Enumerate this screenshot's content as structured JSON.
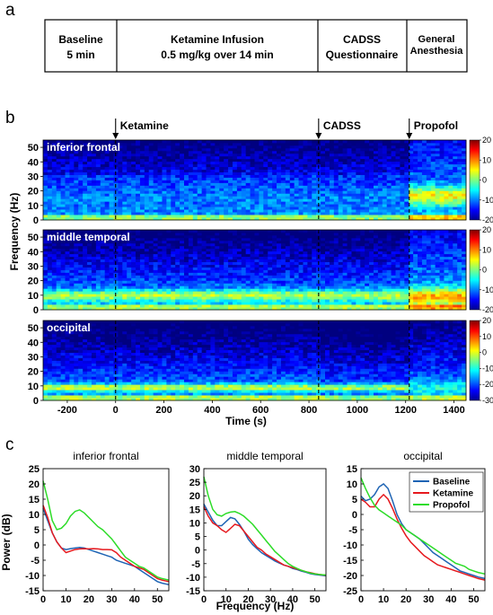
{
  "panel_labels": [
    "a",
    "b",
    "c"
  ],
  "timeline": [
    {
      "lines": [
        "Baseline",
        "5 min"
      ]
    },
    {
      "lines": [
        "Ketamine Infusion",
        "0.5 mg/kg over 14 min"
      ]
    },
    {
      "lines": [
        "CADSS",
        "Questionnaire"
      ]
    },
    {
      "lines": [
        "General",
        "Anesthesia"
      ]
    }
  ],
  "colors": {
    "baseline": "#1f64b4",
    "ketamine": "#e6191e",
    "propofol": "#2ddc28"
  },
  "chart_data": [
    {
      "type": "heatmap",
      "ylabel": "Frequency (Hz)",
      "xlabel": "Time (s)",
      "xlim": [
        -300,
        1450
      ],
      "ylim": [
        0,
        55
      ],
      "xticks": [
        "-200",
        "0",
        "200",
        "400",
        "600",
        "800",
        "1000",
        "1200",
        "1400"
      ],
      "yticks": [
        "0",
        "10",
        "20",
        "30",
        "40",
        "50"
      ],
      "event_labels": [
        "Ketamine",
        "CADSS",
        "Propofol"
      ],
      "events": [
        0,
        840,
        1215
      ],
      "colormap": "jet",
      "panels": [
        {
          "name": "inferior frontal",
          "clim": [
            -20,
            20
          ],
          "cbar_ticks": [
            "20",
            "10",
            "0",
            "-10",
            "-20"
          ]
        },
        {
          "name": "middle temporal",
          "clim": [
            -20,
            20
          ],
          "cbar_ticks": [
            "20",
            "10",
            "0",
            "-10",
            "-20"
          ]
        },
        {
          "name": "occipital",
          "clim": [
            -30,
            20
          ],
          "cbar_ticks": [
            "20",
            "10",
            "0",
            "-10",
            "-20",
            "-30"
          ]
        }
      ]
    },
    {
      "type": "line",
      "xlabel": "Frequency (Hz)",
      "ylabel": "Power (dB)",
      "legend": [
        "Baseline",
        "Ketamine",
        "Propofol"
      ],
      "legend_position": "top-right (occipital panel)",
      "xticks": [
        "0",
        "10",
        "20",
        "30",
        "40",
        "50"
      ],
      "xlim": [
        0,
        55
      ],
      "panels": [
        {
          "title": "inferior frontal",
          "ylim": [
            -15,
            25
          ],
          "yticks": [
            "25",
            "20",
            "15",
            "10",
            "5",
            "0",
            "-5",
            "-10",
            "-15"
          ],
          "x": [
            0,
            2,
            4,
            6,
            8,
            10,
            12,
            14,
            16,
            18,
            20,
            22,
            24,
            26,
            28,
            30,
            32,
            34,
            36,
            38,
            40,
            42,
            44,
            46,
            48,
            50,
            52,
            55
          ],
          "series": [
            {
              "name": "Baseline",
              "values": [
                12,
                8,
                4,
                1,
                -1,
                -1.5,
                -1.2,
                -1,
                -0.8,
                -1,
                -1.5,
                -2,
                -2.5,
                -3,
                -3.5,
                -4,
                -5,
                -5.5,
                -6,
                -6.5,
                -7,
                -8,
                -9,
                -10,
                -11,
                -12,
                -12.5,
                -13
              ]
            },
            {
              "name": "Ketamine",
              "values": [
                13,
                9,
                4,
                1,
                -1,
                -2.5,
                -2,
                -1.5,
                -1.3,
                -1.2,
                -1.3,
                -1.2,
                -1.3,
                -1.5,
                -1.5,
                -1.6,
                -2.5,
                -4,
                -5,
                -6,
                -7,
                -7.5,
                -8,
                -9,
                -10,
                -11,
                -11.5,
                -12
              ]
            },
            {
              "name": "Propofol",
              "values": [
                21,
                15,
                8,
                5,
                5.5,
                7,
                9.5,
                11,
                11.5,
                10.5,
                9,
                7.5,
                6,
                5,
                3.5,
                2,
                0,
                -2,
                -4,
                -5,
                -6,
                -7,
                -7.5,
                -8.5,
                -9.5,
                -10.5,
                -11,
                -11.5
              ]
            }
          ]
        },
        {
          "title": "middle temporal",
          "ylim": [
            -15,
            30
          ],
          "yticks": [
            "30",
            "25",
            "20",
            "15",
            "10",
            "5",
            "0",
            "-5",
            "-10",
            "-15"
          ],
          "x": [
            0,
            2,
            4,
            6,
            8,
            10,
            12,
            14,
            16,
            18,
            20,
            22,
            24,
            26,
            28,
            30,
            32,
            34,
            36,
            38,
            40,
            42,
            44,
            46,
            48,
            50,
            52,
            55
          ],
          "series": [
            {
              "name": "Baseline",
              "values": [
                17,
                14,
                11,
                9,
                9,
                10.5,
                12,
                11.5,
                9.5,
                7,
                4,
                2,
                0.5,
                -1,
                -2,
                -3,
                -4,
                -4.8,
                -5.5,
                -6,
                -6.8,
                -7.2,
                -7.8,
                -8.2,
                -8.7,
                -9,
                -9.2,
                -9.5
              ]
            },
            {
              "name": "Ketamine",
              "values": [
                16,
                12.5,
                10,
                9,
                7.5,
                6.5,
                8,
                9.5,
                9,
                7,
                5,
                3,
                1,
                0,
                -1.5,
                -2.5,
                -3.5,
                -4.5,
                -5.5,
                -6,
                -6.5,
                -7,
                -7.5,
                -8,
                -8.3,
                -8.7,
                -9,
                -9.3
              ]
            },
            {
              "name": "Propofol",
              "values": [
                27,
                20,
                15,
                13,
                12.5,
                13.5,
                14,
                14.2,
                13.5,
                12.5,
                11,
                9.5,
                7.5,
                5.5,
                3.5,
                1.5,
                -0.5,
                -2,
                -3.5,
                -5,
                -6,
                -6.8,
                -7.5,
                -8,
                -8.5,
                -8.8,
                -9,
                -9.2
              ]
            }
          ]
        },
        {
          "title": "occipital",
          "ylim": [
            -25,
            15
          ],
          "yticks": [
            "15",
            "10",
            "5",
            "0",
            "-5",
            "-10",
            "-15",
            "-20",
            "-25"
          ],
          "x": [
            0,
            2,
            4,
            6,
            8,
            10,
            12,
            14,
            16,
            18,
            20,
            22,
            24,
            26,
            28,
            30,
            32,
            34,
            36,
            38,
            40,
            42,
            44,
            46,
            48,
            50,
            52,
            55
          ],
          "series": [
            {
              "name": "Baseline",
              "values": [
                6,
                4.5,
                5,
                6.5,
                9,
                10,
                8.5,
                4.5,
                0,
                -3,
                -5,
                -6,
                -7,
                -8,
                -9.5,
                -11,
                -12.5,
                -13.5,
                -14.5,
                -15.5,
                -16.5,
                -17.5,
                -18.5,
                -19,
                -19.5,
                -20,
                -20.5,
                -21
              ]
            },
            {
              "name": "Ketamine",
              "values": [
                5,
                4,
                2.5,
                2.5,
                5,
                6.5,
                5,
                2,
                -1.5,
                -4.5,
                -7,
                -9,
                -10.5,
                -12,
                -13.5,
                -14.5,
                -15.5,
                -16.5,
                -17,
                -17.5,
                -18,
                -18.5,
                -19,
                -19.5,
                -20,
                -20.5,
                -21,
                -21.5
              ]
            },
            {
              "name": "Propofol",
              "values": [
                12,
                8.5,
                5.5,
                3,
                1.5,
                0.5,
                -0.5,
                -1.5,
                -2.5,
                -3.5,
                -5,
                -6,
                -7,
                -8,
                -9,
                -10,
                -11,
                -12,
                -13,
                -14,
                -15,
                -16,
                -16.5,
                -17,
                -18,
                -18.5,
                -19,
                -19.5
              ]
            }
          ]
        }
      ]
    }
  ]
}
